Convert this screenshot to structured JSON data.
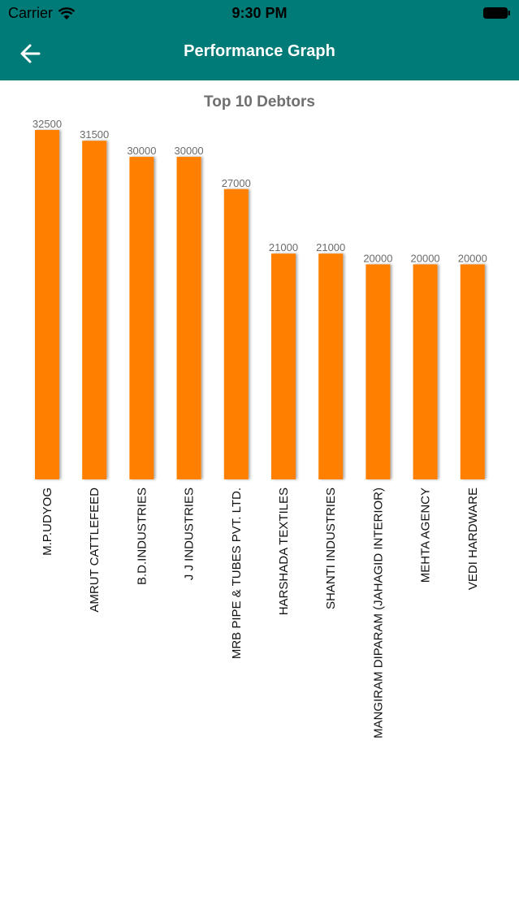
{
  "status_bar": {
    "carrier": "Carrier",
    "time": "9:30 PM",
    "wifi_icon": "wifi-icon",
    "battery_icon": "battery-icon"
  },
  "nav": {
    "title": "Performance Graph",
    "back_icon": "arrow-left-icon"
  },
  "colors": {
    "header": "#007b77",
    "bar": "#ff8000",
    "value_label": "#6b6b6b"
  },
  "chart_data": {
    "type": "bar",
    "title": "Top 10 Debtors",
    "categories": [
      "M.P.UDYOG",
      "AMRUT CATTLEFEED",
      "B.D.INDUSTRIES",
      "J J INDUSTRIES",
      "MRB PIPE & TUBES PVT. LTD.",
      "HARSHADA TEXTILES",
      "SHANTI INDUSTRIES",
      "MANGIRAM DIPARAM (JAHAGID INTERIOR)",
      "MEHTA AGENCY",
      "VEDI HARDWARE"
    ],
    "values": [
      32500,
      31500,
      30000,
      30000,
      27000,
      21000,
      21000,
      20000,
      20000,
      20000
    ],
    "xlabel": "",
    "ylabel": "",
    "ylim": [
      0,
      32500
    ],
    "grid": false,
    "legend": "none"
  }
}
